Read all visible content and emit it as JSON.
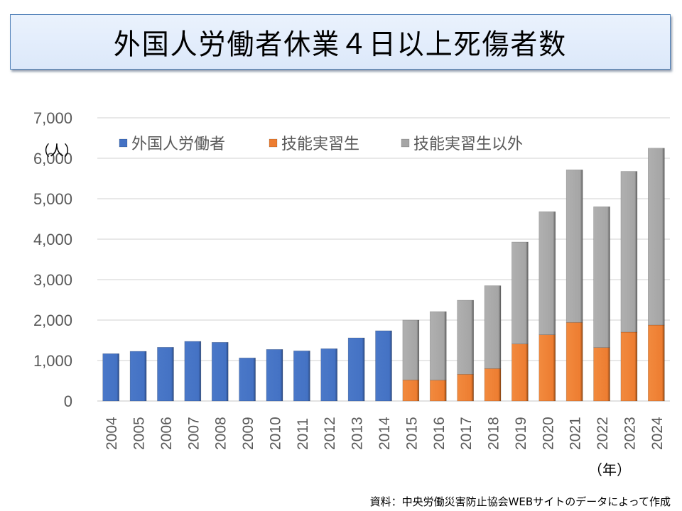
{
  "title": "外国人労働者休業４日以上死傷者数",
  "source_note": "資料：中央労働災害防止協会WEBサイトのデータによって作成",
  "chart_data": {
    "type": "bar",
    "stacked": true,
    "title": "外国人労働者休業４日以上死傷者数",
    "xlabel": "（年）",
    "ylabel": "（人）",
    "ylim": [
      0,
      7000
    ],
    "yticks": [
      0,
      1000,
      2000,
      3000,
      4000,
      5000,
      6000,
      7000
    ],
    "ytick_labels": [
      "0",
      "1,000",
      "2,000",
      "3,000",
      "4,000",
      "5,000",
      "6,000",
      "7,000"
    ],
    "grid": true,
    "legend_position": "top-left",
    "categories": [
      "2004",
      "2005",
      "2006",
      "2007",
      "2008",
      "2009",
      "2010",
      "2011",
      "2012",
      "2013",
      "2014",
      "2015",
      "2016",
      "2017",
      "2018",
      "2019",
      "2020",
      "2021",
      "2022",
      "2023",
      "2024"
    ],
    "series": [
      {
        "name": "外国人労働者",
        "color": "#4472c4",
        "values": [
          1170,
          1228,
          1328,
          1474,
          1451,
          1065,
          1275,
          1240,
          1293,
          1561,
          1737,
          null,
          null,
          null,
          null,
          null,
          null,
          null,
          null,
          null,
          null
        ]
      },
      {
        "name": "技能実習生",
        "color": "#ed7d31",
        "values": [
          null,
          null,
          null,
          null,
          null,
          null,
          null,
          null,
          null,
          null,
          null,
          521,
          515,
          661,
          801,
          1409,
          1637,
          1942,
          1321,
          1702,
          1877
        ]
      },
      {
        "name": "技能実習生以外",
        "color": "#a5a5a5",
        "values": [
          null,
          null,
          null,
          null,
          null,
          null,
          null,
          null,
          null,
          null,
          null,
          1479,
          1695,
          1830,
          2049,
          2521,
          3042,
          3773,
          3481,
          3973,
          4373
        ]
      }
    ]
  }
}
